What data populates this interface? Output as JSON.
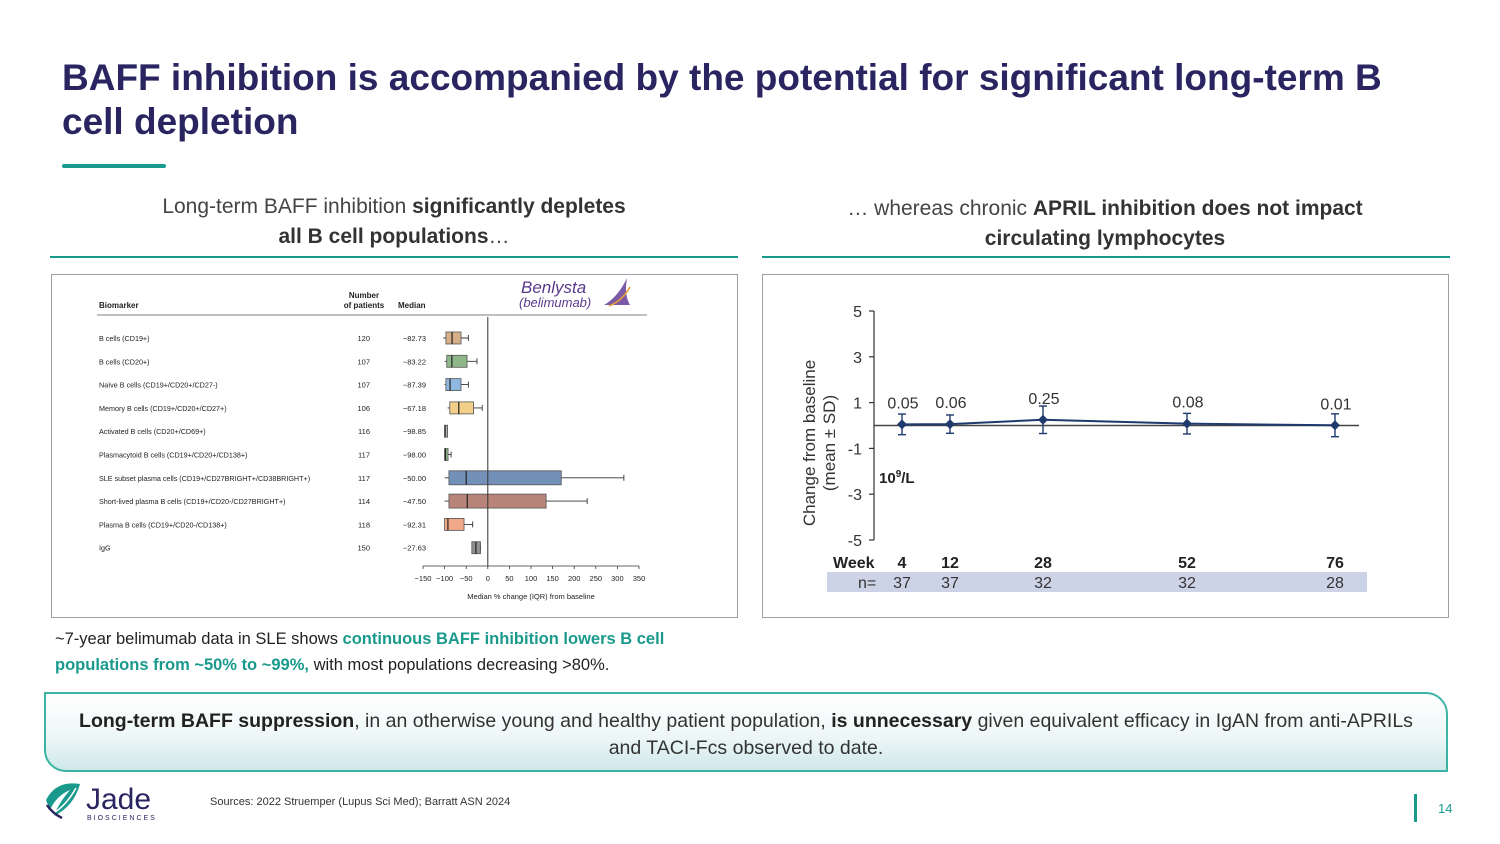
{
  "title": "BAFF inhibition is accompanied by the potential for significant long-term B cell depletion",
  "left_subtitle": {
    "pre": "Long-term BAFF inhibition ",
    "bold1": "significantly depletes",
    "bold2": "all B cell populations",
    "post": "…"
  },
  "right_subtitle": {
    "pre": "… whereas chronic ",
    "bold1": "APRIL inhibition does not impact",
    "bold2": "circulating lymphocytes"
  },
  "left_note": {
    "pre": "~7-year belimumab data in SLE shows ",
    "highlight": "continuous BAFF inhibition lowers B cell populations from ~50% to ~99%,",
    "post": " with most populations decreasing >80%."
  },
  "callout": {
    "bold1": "Long-term BAFF suppression",
    "mid": ", in an otherwise young and healthy patient population, ",
    "bold2": "is unnecessary",
    "post": " given equivalent efficacy in IgAN from anti-APRILs and TACI-Fcs observed to date."
  },
  "logo": {
    "name": "Jade",
    "tagline": "BIOSCIENCES"
  },
  "sources": "Sources: 2022 Struemper (Lupus Sci Med); Barratt ASN 2024",
  "page_number": "14",
  "colors": {
    "navy": "#2a2560",
    "teal": "#1a9a8c",
    "callout_border": "#3bb4a4",
    "line_navy": "#1f3a6e"
  },
  "chart_data": [
    {
      "type": "box",
      "brand": {
        "name": "Benlysta",
        "generic": "(belimumab)"
      },
      "headers": {
        "biomarker": "Biomarker",
        "patients": "Number\nof patients",
        "median": "Median"
      },
      "xlabel": "Median % change (IQR) from baseline",
      "xlim": [
        -150,
        350
      ],
      "xticks": [
        -150,
        -100,
        -50,
        0,
        50,
        100,
        150,
        200,
        250,
        300,
        350
      ],
      "rows": [
        {
          "label": "B cells (CD19+)",
          "n": "120",
          "median_label": "−82.73",
          "median": -82.73,
          "q1": -97,
          "q3": -62,
          "lo": -103,
          "hi": -45,
          "color": "#d7b08a"
        },
        {
          "label": "B cells (CD20+)",
          "n": "107",
          "median_label": "−83.22",
          "median": -83.22,
          "q1": -95,
          "q3": -48,
          "lo": -100,
          "hi": -25,
          "color": "#8fb88a"
        },
        {
          "label": "Naïve B cells (CD19+/CD20+/CD27-)",
          "n": "107",
          "median_label": "−87.39",
          "median": -87.39,
          "q1": -97,
          "q3": -62,
          "lo": -100,
          "hi": -45,
          "color": "#8fb8e0"
        },
        {
          "label": "Memory B cells (CD19+/CD20+/CD27+)",
          "n": "106",
          "median_label": "−67.18",
          "median": -67.18,
          "q1": -88,
          "q3": -33,
          "lo": -93,
          "hi": -13,
          "color": "#f2d08a"
        },
        {
          "label": "Activated B cells (CD20+/CD69+)",
          "n": "116",
          "median_label": "−98.85",
          "median": -98.85,
          "q1": -100,
          "q3": -96,
          "lo": -100,
          "hi": -95,
          "color": "#b0b0b0"
        },
        {
          "label": "Plasmacytoid B cells (CD19+/CD20+/CD138+)",
          "n": "117",
          "median_label": "−98.00",
          "median": -98.0,
          "q1": -100,
          "q3": -92,
          "lo": -100,
          "hi": -85,
          "color": "#8fb88a"
        },
        {
          "label": "SLE subset plasma cells (CD19+/CD27BRIGHT+/CD38BRIGHT+)",
          "n": "117",
          "median_label": "−50.00",
          "median": -50.0,
          "q1": -90,
          "q3": 170,
          "lo": -100,
          "hi": 315,
          "color": "#7290b8"
        },
        {
          "label": "Short-lived plasma B cells (CD19+/CD20-/CD27BRIGHT+)",
          "n": "114",
          "median_label": "−47.50",
          "median": -47.5,
          "q1": -90,
          "q3": 135,
          "lo": -100,
          "hi": 230,
          "color": "#b8847a"
        },
        {
          "label": "Plasma B cells (CD19+/CD20-/CD138+)",
          "n": "118",
          "median_label": "−92.31",
          "median": -92.31,
          "q1": -100,
          "q3": -55,
          "lo": -100,
          "hi": -35,
          "color": "#f0a888"
        },
        {
          "label": "IgG",
          "n": "150",
          "median_label": "−27.63",
          "median": -27.63,
          "q1": -37,
          "q3": -17,
          "lo": -37,
          "hi": -17,
          "color": "#909090"
        }
      ]
    },
    {
      "type": "line",
      "ylabel_line1": "Change from baseline",
      "ylabel_line2": "(mean ± SD)",
      "unit_base": "10",
      "unit_exp": "9",
      "unit_rest": "/L",
      "ylim": [
        -5,
        5
      ],
      "yticks": [
        5,
        3,
        1,
        -1,
        -3,
        -5
      ],
      "x_label": "Week",
      "n_label": "n=",
      "x": [
        4,
        12,
        28,
        52,
        76
      ],
      "series": [
        {
          "values": [
            0.05,
            0.06,
            0.25,
            0.08,
            0.01
          ],
          "sd": [
            0.45,
            0.4,
            0.6,
            0.45,
            0.5
          ],
          "labels": [
            "0.05",
            "0.06",
            "0.25",
            "0.08",
            "0.01"
          ]
        }
      ],
      "n": [
        "37",
        "37",
        "32",
        "32",
        "28"
      ]
    }
  ]
}
